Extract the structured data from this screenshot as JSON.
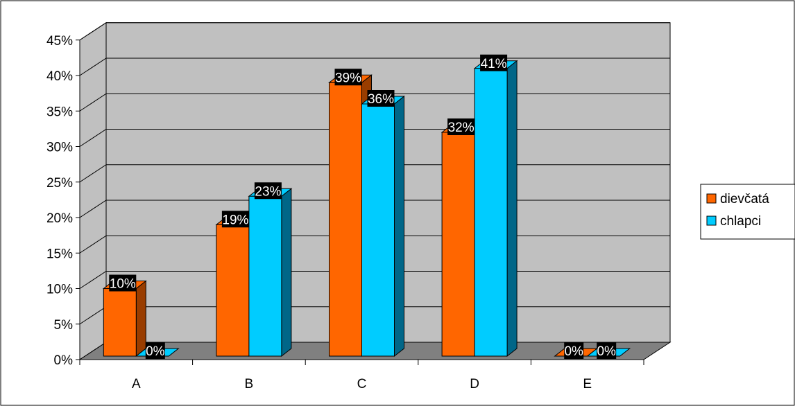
{
  "chart_data": {
    "type": "bar",
    "categories": [
      "A",
      "B",
      "C",
      "D",
      "E"
    ],
    "series": [
      {
        "name": "dievčatá",
        "values": [
          10,
          19,
          39,
          32,
          0
        ],
        "color": "#FF6600",
        "side_color": "#993D00",
        "top_color": "#FF6600"
      },
      {
        "name": "chlapci",
        "values": [
          0,
          23,
          36,
          41,
          0
        ],
        "color": "#00CCFF",
        "side_color": "#006688",
        "top_color": "#00CCFF"
      }
    ],
    "data_labels": [
      [
        "10%",
        "19%",
        "39%",
        "32%",
        "0%"
      ],
      [
        "0%",
        "23%",
        "36%",
        "41%",
        "0%"
      ]
    ],
    "y_ticks": [
      "0%",
      "5%",
      "10%",
      "15%",
      "20%",
      "25%",
      "30%",
      "35%",
      "40%",
      "45%"
    ],
    "ylim": [
      0,
      45
    ],
    "y_unit": "%",
    "grid": true,
    "legend_position": "right",
    "wall_color": "#C0C0C0",
    "floor_color": "#808080",
    "style": "3d-clustered-column"
  }
}
